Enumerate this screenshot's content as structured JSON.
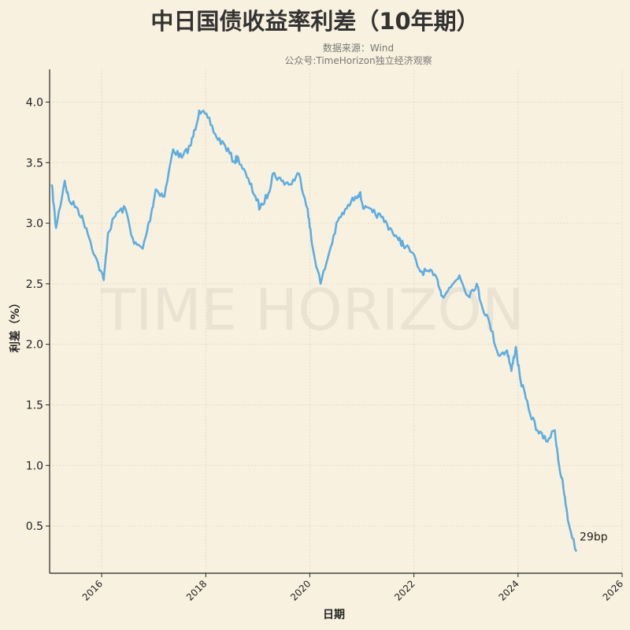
{
  "title": "中日国债收益率利差（10年期）",
  "source": "数据来源：Wind",
  "account": "公众号:TimeHorizon独立经济观察",
  "watermark": "TIME HORIZON",
  "chart_data": {
    "type": "line",
    "title": "中日国债收益率利差（10年期）",
    "xlabel": "日期",
    "ylabel": "利差（%）",
    "xlim": [
      "2015-01",
      "2026-01"
    ],
    "ylim": [
      0.11,
      4.27
    ],
    "xticks": [
      "2016",
      "2018",
      "2020",
      "2022",
      "2024",
      "2026"
    ],
    "yticks": [
      "0.5",
      "1.0",
      "1.5",
      "2.0",
      "2.5",
      "3.0",
      "3.5",
      "4.0"
    ],
    "grid": true,
    "line_color": "#5dade2",
    "annotation": "29bp",
    "x": [
      "2015-01",
      "2015-02",
      "2015-04",
      "2015-05",
      "2015-07",
      "2015-09",
      "2015-11",
      "2016-01",
      "2016-02",
      "2016-04",
      "2016-06",
      "2016-08",
      "2016-10",
      "2016-12",
      "2017-01",
      "2017-03",
      "2017-05",
      "2017-07",
      "2017-09",
      "2017-10",
      "2017-11",
      "2018-01",
      "2018-03",
      "2018-05",
      "2018-07",
      "2018-08",
      "2018-10",
      "2018-12",
      "2019-01",
      "2019-03",
      "2019-04",
      "2019-06",
      "2019-08",
      "2019-10",
      "2019-12",
      "2020-01",
      "2020-03",
      "2020-05",
      "2020-07",
      "2020-09",
      "2020-11",
      "2020-12",
      "2021-01",
      "2021-03",
      "2021-05",
      "2021-07",
      "2021-09",
      "2021-10",
      "2021-12",
      "2022-02",
      "2022-04",
      "2022-06",
      "2022-07",
      "2022-09",
      "2022-11",
      "2023-01",
      "2023-03",
      "2023-04",
      "2023-06",
      "2023-08",
      "2023-10",
      "2023-11",
      "2023-12",
      "2024-01",
      "2024-03",
      "2024-05",
      "2024-07",
      "2024-09",
      "2024-10",
      "2024-11",
      "2024-12",
      "2025-02"
    ],
    "values": [
      3.32,
      2.96,
      3.35,
      3.19,
      3.12,
      2.96,
      2.73,
      2.53,
      2.92,
      3.09,
      3.12,
      2.83,
      2.79,
      3.09,
      3.28,
      3.22,
      3.61,
      3.54,
      3.64,
      3.77,
      3.93,
      3.87,
      3.71,
      3.64,
      3.51,
      3.54,
      3.38,
      3.22,
      3.12,
      3.25,
      3.41,
      3.35,
      3.32,
      3.41,
      3.12,
      2.83,
      2.5,
      2.76,
      3.02,
      3.12,
      3.22,
      3.25,
      3.12,
      3.09,
      3.05,
      2.96,
      2.86,
      2.83,
      2.76,
      2.6,
      2.6,
      2.53,
      2.4,
      2.47,
      2.57,
      2.4,
      2.5,
      2.34,
      2.17,
      1.91,
      1.95,
      1.78,
      1.98,
      1.72,
      1.46,
      1.29,
      1.2,
      1.29,
      1.0,
      0.81,
      0.55,
      0.29
    ]
  }
}
